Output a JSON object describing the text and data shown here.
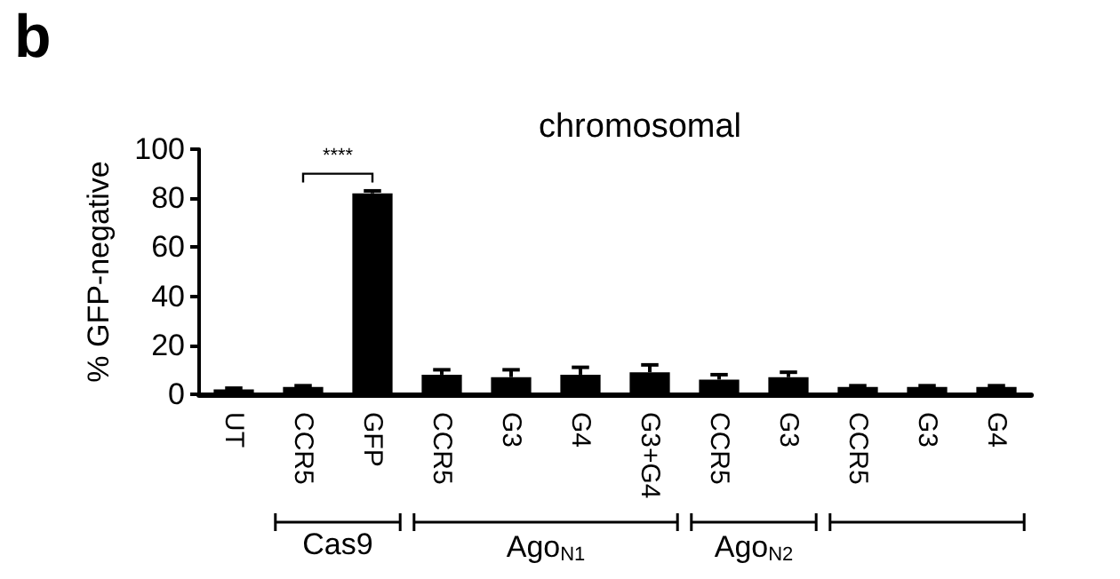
{
  "chart_data": {
    "type": "bar",
    "title": "chromosomal",
    "ylabel": "% GFP-negative",
    "categories": [
      "UT",
      "CCR5",
      "GFP",
      "CCR5",
      "G3",
      "G4",
      "G3+G4",
      "CCR5",
      "G3",
      "CCR5",
      "G3",
      "G4"
    ],
    "values": [
      2,
      3,
      82,
      8,
      7,
      8,
      9,
      6,
      7,
      3,
      3,
      3
    ],
    "errors": [
      0.5,
      0.5,
      1,
      2,
      3,
      3,
      3,
      2,
      2,
      0.5,
      0.5,
      0.5
    ],
    "color": "#000000",
    "ylim": [
      0,
      100
    ],
    "yticks": [
      0,
      20,
      40,
      60,
      80,
      100
    ],
    "grid": false,
    "annotations": [
      "b",
      "****",
      "Cas9",
      "Ago$_{N1}$",
      "Ago$_{N2}$"
    ]
  }
}
